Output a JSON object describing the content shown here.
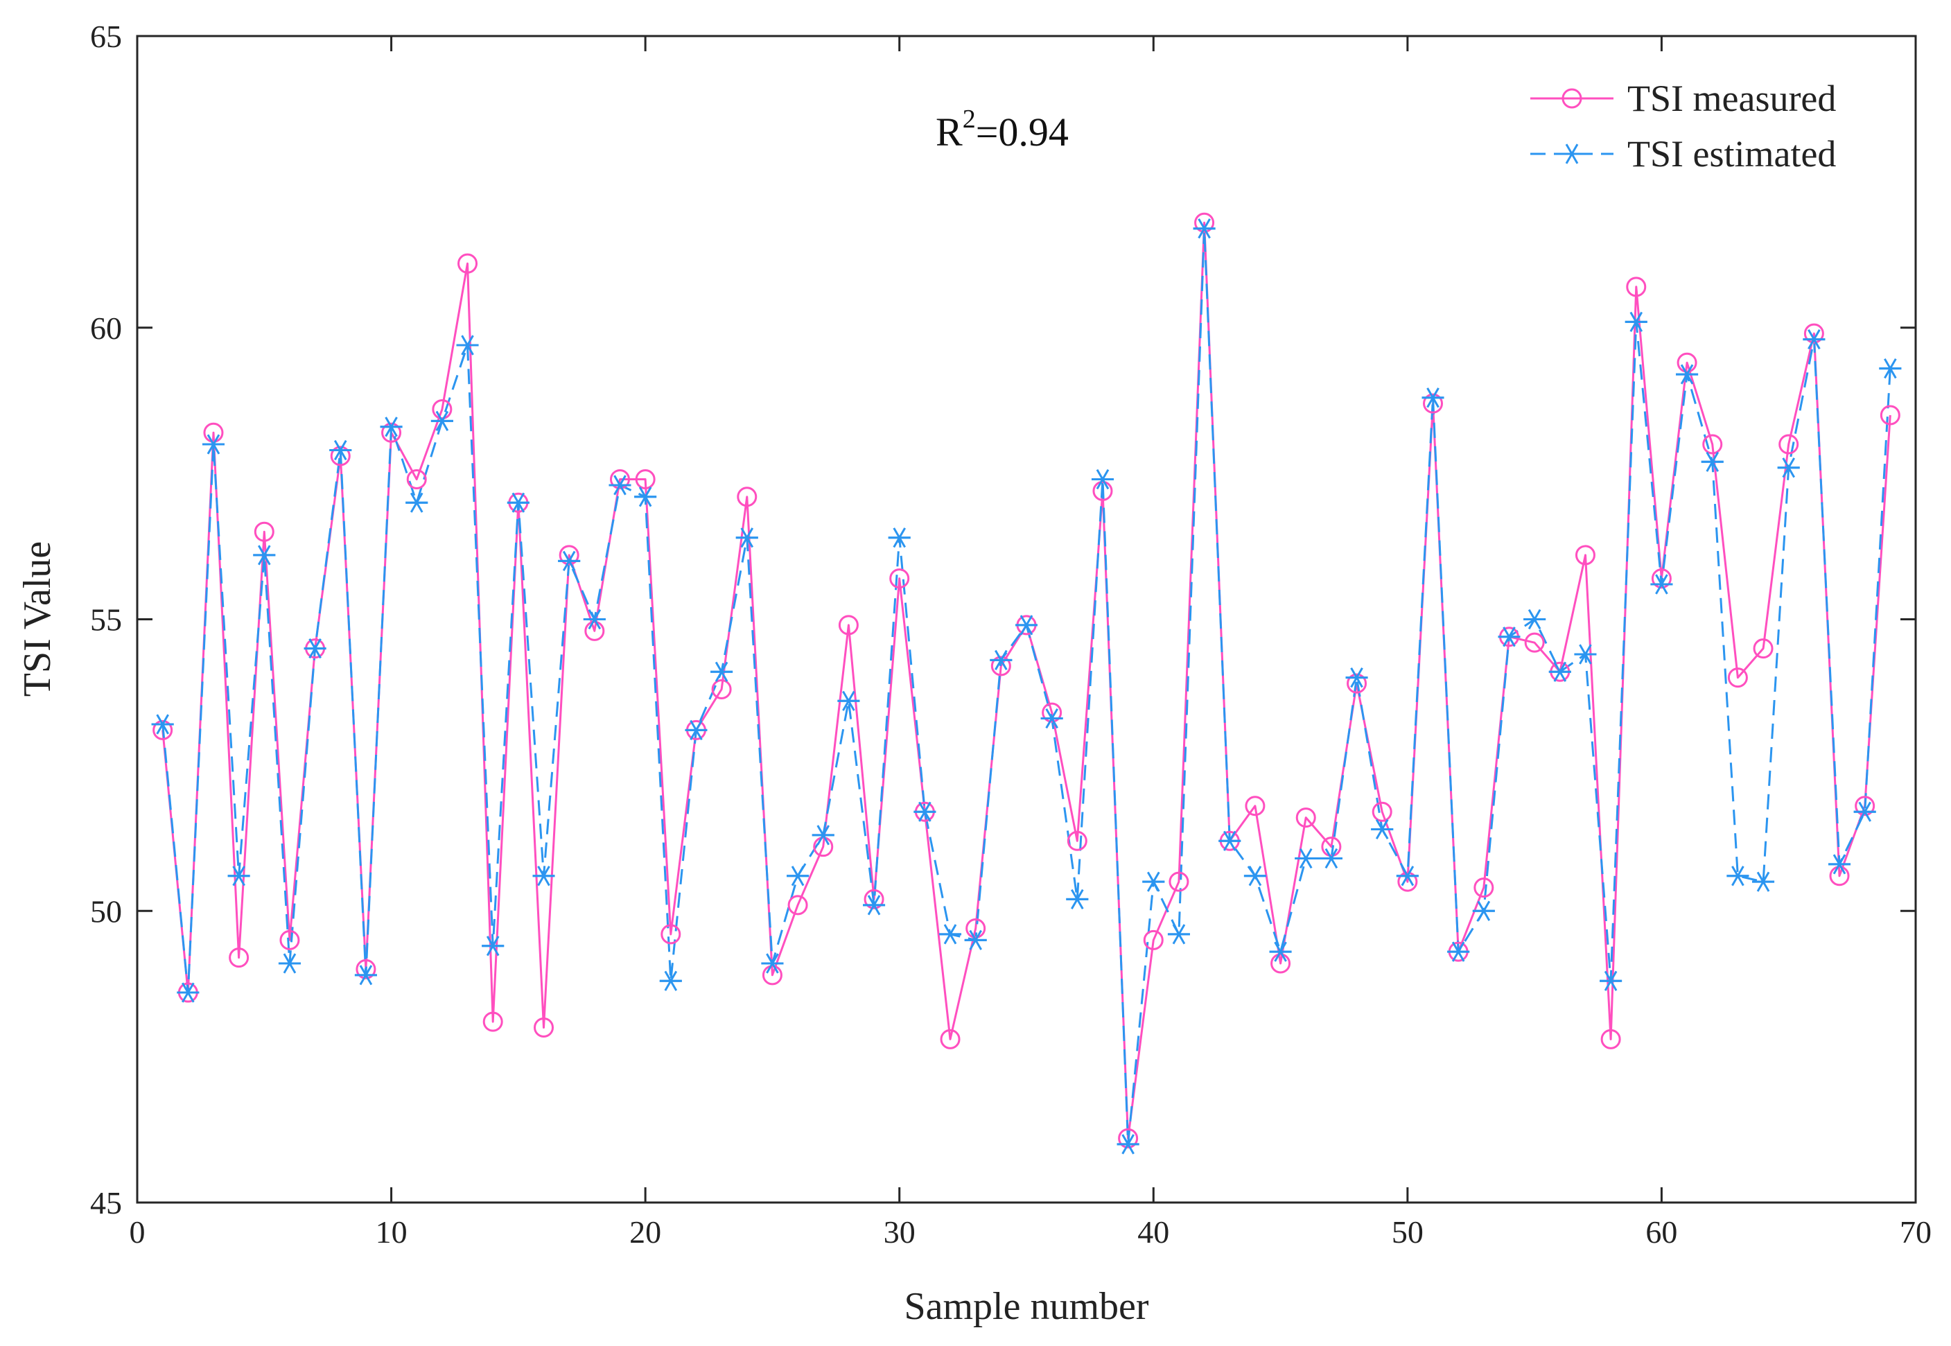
{
  "chart_data": {
    "type": "line",
    "title": "",
    "xlabel": "Sample number",
    "ylabel": "TSI Value",
    "xlim": [
      0,
      70
    ],
    "ylim": [
      45,
      65
    ],
    "xticks": [
      0,
      10,
      20,
      30,
      40,
      50,
      60,
      70
    ],
    "yticks": [
      45,
      50,
      55,
      60,
      65
    ],
    "grid": false,
    "legend_position": "top-right",
    "annotation": {
      "base": "R",
      "sup": "2",
      "rest": "=0.94"
    },
    "x": [
      1,
      2,
      3,
      4,
      5,
      6,
      7,
      8,
      9,
      10,
      11,
      12,
      13,
      14,
      15,
      16,
      17,
      18,
      19,
      20,
      21,
      22,
      23,
      24,
      25,
      26,
      27,
      28,
      29,
      30,
      31,
      32,
      33,
      34,
      35,
      36,
      37,
      38,
      39,
      40,
      41,
      42,
      43,
      44,
      45,
      46,
      47,
      48,
      49,
      50,
      51,
      52,
      53,
      54,
      55,
      56,
      57,
      58,
      59,
      60,
      61,
      62,
      63,
      64,
      65,
      66,
      67,
      68,
      69
    ],
    "series": [
      {
        "name": "TSI measured",
        "color": "#ff4fbf",
        "marker": "circle",
        "line_style": "solid",
        "values": [
          53.1,
          48.6,
          58.2,
          49.2,
          56.5,
          49.5,
          54.5,
          57.8,
          49.0,
          58.2,
          57.4,
          58.6,
          61.1,
          48.1,
          57.0,
          48.0,
          56.1,
          54.8,
          57.4,
          57.4,
          49.6,
          53.1,
          53.8,
          57.1,
          48.9,
          50.1,
          51.1,
          54.9,
          50.2,
          55.7,
          51.7,
          47.8,
          49.7,
          54.2,
          54.9,
          53.4,
          51.2,
          57.2,
          46.1,
          49.5,
          50.5,
          61.8,
          51.2,
          51.8,
          49.1,
          51.6,
          51.1,
          53.9,
          51.7,
          50.5,
          58.7,
          49.3,
          50.4,
          54.7,
          54.6,
          54.1,
          56.1,
          47.8,
          60.7,
          55.7,
          59.4,
          58.0,
          54.0,
          54.5,
          58.0,
          59.9,
          50.6,
          51.8,
          58.5
        ]
      },
      {
        "name": "TSI estimated",
        "color": "#2b95f0",
        "marker": "asterisk",
        "line_style": "dashed",
        "values": [
          53.2,
          48.6,
          58.0,
          50.6,
          56.1,
          49.1,
          54.5,
          57.9,
          48.9,
          58.3,
          57.0,
          58.4,
          59.7,
          49.4,
          57.0,
          50.6,
          56.0,
          55.0,
          57.3,
          57.1,
          48.8,
          53.1,
          54.1,
          56.4,
          49.1,
          50.6,
          51.3,
          53.6,
          50.1,
          56.4,
          51.7,
          49.6,
          49.5,
          54.3,
          54.9,
          53.3,
          50.2,
          57.4,
          46.0,
          50.5,
          49.6,
          61.7,
          51.2,
          50.6,
          49.3,
          50.9,
          50.9,
          54.0,
          51.4,
          50.6,
          58.8,
          49.3,
          50.0,
          54.7,
          55.0,
          54.1,
          54.4,
          48.8,
          60.1,
          55.6,
          59.2,
          57.7,
          50.6,
          50.5,
          57.6,
          59.8,
          50.8,
          51.7,
          59.3
        ]
      }
    ]
  }
}
